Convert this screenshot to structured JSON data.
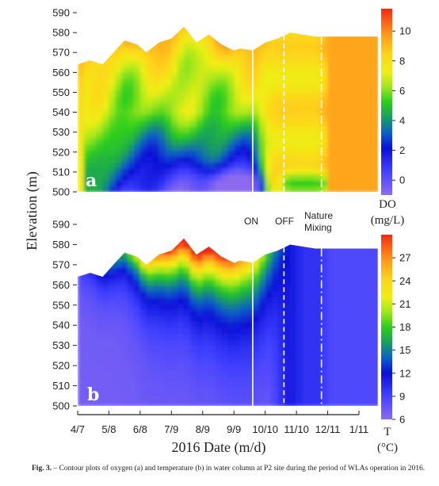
{
  "chart_data": [
    {
      "type": "heatmap",
      "panel_label": "a",
      "ylabel": "Elevation (m)",
      "ylim": [
        500,
        590
      ],
      "y_ticks": [
        "590",
        "580",
        "570",
        "560",
        "550",
        "540",
        "530",
        "520",
        "510",
        "500"
      ],
      "colorbar": {
        "title": "DO",
        "unit": "(mg/L)",
        "range": [
          -1,
          11.5
        ],
        "ticks": [
          "10",
          "8",
          "6",
          "4",
          "2",
          "0"
        ]
      },
      "surface_elevation": [
        [
          0,
          564
        ],
        [
          0.4,
          566
        ],
        [
          0.8,
          564
        ],
        [
          1.2,
          571
        ],
        [
          1.5,
          576
        ],
        [
          1.9,
          574
        ],
        [
          2.2,
          570
        ],
        [
          2.6,
          575
        ],
        [
          3.0,
          577
        ],
        [
          3.4,
          583
        ],
        [
          3.8,
          575
        ],
        [
          4.2,
          579
        ],
        [
          4.6,
          574
        ],
        [
          5.0,
          571
        ],
        [
          5.2,
          572
        ],
        [
          5.6,
          571
        ],
        [
          6.0,
          575
        ],
        [
          6.4,
          577
        ],
        [
          6.8,
          580
        ],
        [
          7.2,
          579
        ],
        [
          7.6,
          578
        ],
        [
          8.0,
          578
        ],
        [
          9.6,
          578
        ]
      ],
      "event_lines": [
        {
          "x": 5.6,
          "style": "solid"
        },
        {
          "x": 6.6,
          "style": "dashed"
        },
        {
          "x": 7.8,
          "style": "dash-dot"
        }
      ]
    },
    {
      "type": "heatmap",
      "panel_label": "b",
      "xlabel": "2016 Date (m/d)",
      "ylabel": "Elevation (m)",
      "ylim": [
        500,
        590
      ],
      "x_ticks": [
        "4/7",
        "5/8",
        "6/8",
        "7/9",
        "8/9",
        "9/9",
        "10/10",
        "11/10",
        "12/11",
        "1/11"
      ],
      "y_ticks": [
        "590",
        "580",
        "570",
        "560",
        "550",
        "540",
        "530",
        "520",
        "510",
        "500"
      ],
      "colorbar": {
        "title": "T",
        "unit": "(°C)",
        "range": [
          6,
          30
        ],
        "ticks": [
          "27",
          "24",
          "21",
          "18",
          "15",
          "12",
          "9",
          "6"
        ]
      },
      "surface_elevation": [
        [
          0,
          564
        ],
        [
          0.4,
          566
        ],
        [
          0.8,
          564
        ],
        [
          1.2,
          571
        ],
        [
          1.5,
          576
        ],
        [
          1.9,
          574
        ],
        [
          2.2,
          570
        ],
        [
          2.6,
          575
        ],
        [
          3.0,
          577
        ],
        [
          3.4,
          583
        ],
        [
          3.8,
          575
        ],
        [
          4.2,
          579
        ],
        [
          4.6,
          574
        ],
        [
          5.0,
          571
        ],
        [
          5.2,
          572
        ],
        [
          5.6,
          571
        ],
        [
          6.0,
          575
        ],
        [
          6.4,
          577
        ],
        [
          6.8,
          580
        ],
        [
          7.2,
          579
        ],
        [
          7.6,
          578
        ],
        [
          8.0,
          578
        ],
        [
          9.6,
          578
        ]
      ],
      "event_lines": [
        {
          "x": 5.6,
          "style": "solid"
        },
        {
          "x": 6.6,
          "style": "dashed"
        },
        {
          "x": 7.8,
          "style": "dash-dot"
        }
      ],
      "annotations": [
        "ON",
        "OFF",
        "Nature",
        "Mixing"
      ]
    }
  ],
  "caption": {
    "label": "Fig. 3.",
    "text": " – Contour plots of oxygen (a) and temperature (b) in water column at P2 site during the period of WLAs operation in 2016."
  }
}
